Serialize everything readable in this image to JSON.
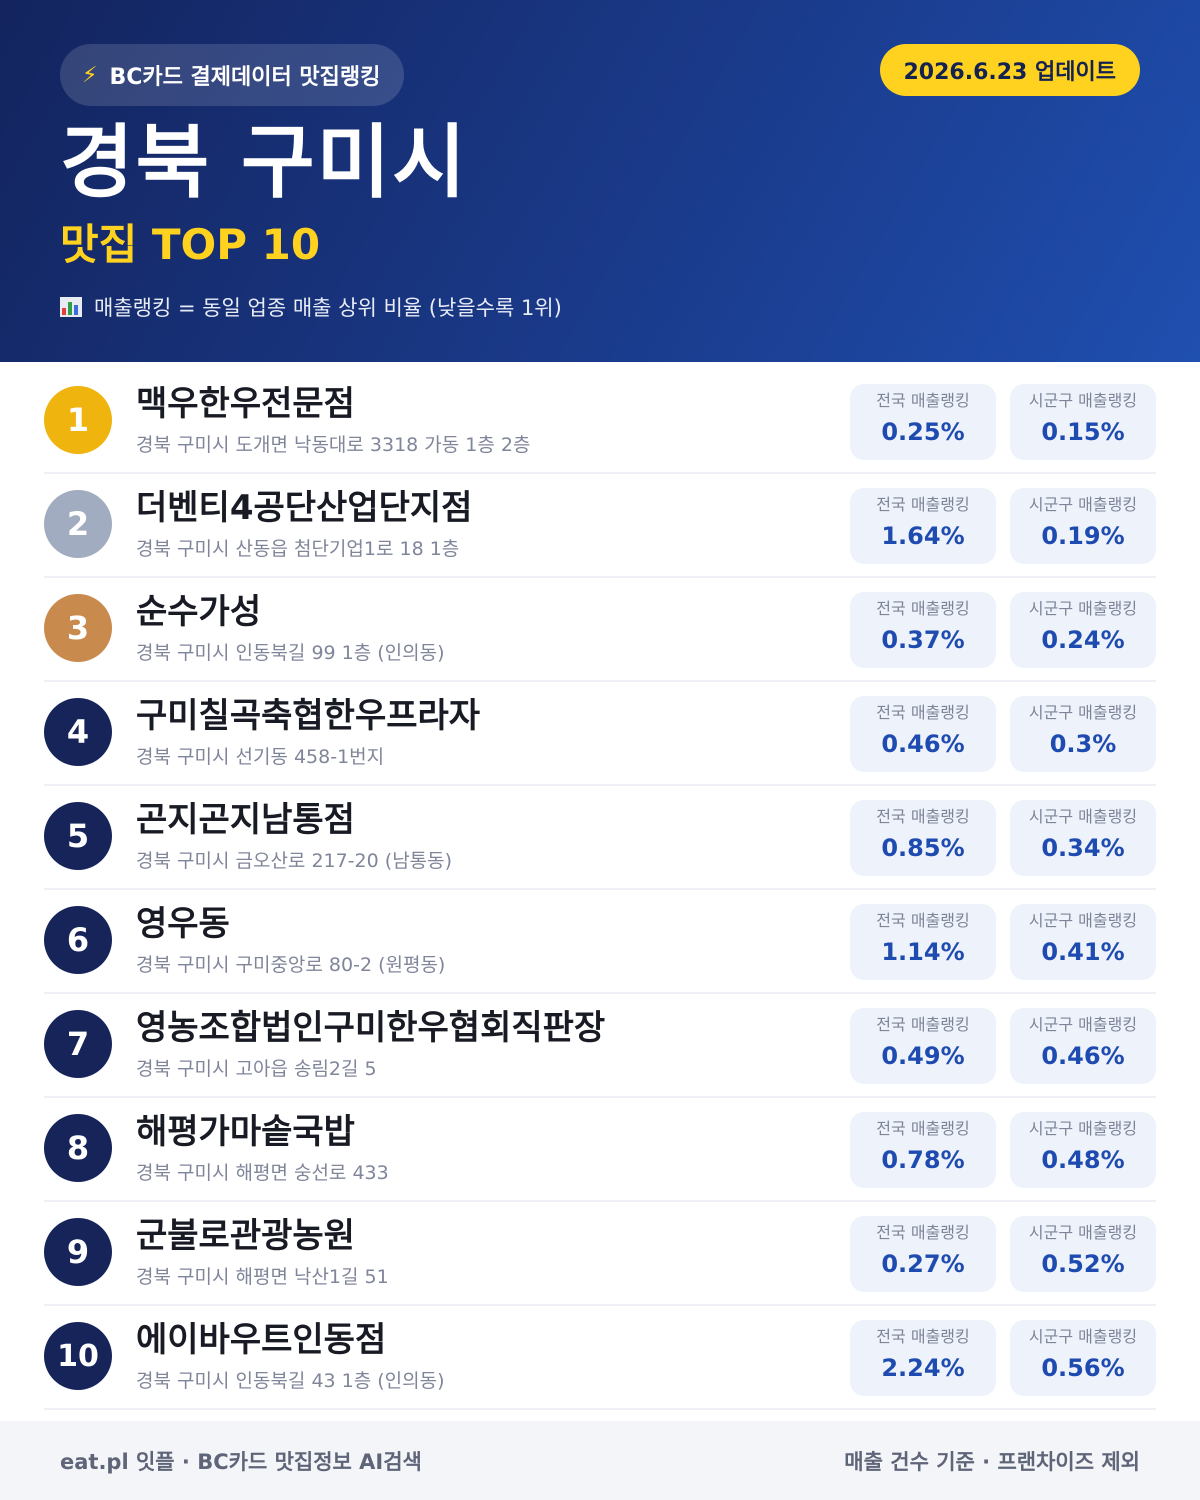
{
  "header": {
    "source_label": "BC카드 결제데이터 맛집랭킹",
    "update_label": "2026.6.23 업데이트",
    "title": "경북 구미시",
    "subtitle": "맛집 TOP 10",
    "rank_note": "매출랭킹 = 동일 업종 매출 상위 비율 (낮을수록 1위)"
  },
  "stat_labels": {
    "national": "전국 매출랭킹",
    "local": "시군구 매출랭킹"
  },
  "restaurants": [
    {
      "rank": "1",
      "name": "맥우한우전문점",
      "address": "경북 구미시 도개면 낙동대로 3318 가동 1층 2층",
      "national": "0.25%",
      "local": "0.15%"
    },
    {
      "rank": "2",
      "name": "더벤티4공단산업단지점",
      "address": "경북 구미시 산동읍 첨단기업1로 18 1층",
      "national": "1.64%",
      "local": "0.19%"
    },
    {
      "rank": "3",
      "name": "순수가성",
      "address": "경북 구미시 인동북길 99 1층 (인의동)",
      "national": "0.37%",
      "local": "0.24%"
    },
    {
      "rank": "4",
      "name": "구미칠곡축협한우프라자",
      "address": "경북 구미시 선기동 458-1번지",
      "national": "0.46%",
      "local": "0.3%"
    },
    {
      "rank": "5",
      "name": "곤지곤지남통점",
      "address": "경북 구미시 금오산로 217-20 (남통동)",
      "national": "0.85%",
      "local": "0.34%"
    },
    {
      "rank": "6",
      "name": "영우동",
      "address": "경북 구미시 구미중앙로 80-2 (원평동)",
      "national": "1.14%",
      "local": "0.41%"
    },
    {
      "rank": "7",
      "name": "영농조합법인구미한우협회직판장",
      "address": "경북 구미시 고아읍 송림2길 5",
      "national": "0.49%",
      "local": "0.46%"
    },
    {
      "rank": "8",
      "name": "해평가마솥국밥",
      "address": "경북 구미시 해평면 숭선로 433",
      "national": "0.78%",
      "local": "0.48%"
    },
    {
      "rank": "9",
      "name": "군불로관광농원",
      "address": "경북 구미시 해평면 낙산1길 51",
      "national": "0.27%",
      "local": "0.52%"
    },
    {
      "rank": "10",
      "name": "에이바우트인동점",
      "address": "경북 구미시 인동북길 43 1층 (인의동)",
      "national": "2.24%",
      "local": "0.56%"
    }
  ],
  "footer": {
    "left": "eat.pl 잇플 · BC카드 맛집정보 AI검색",
    "right": "매출 건수 기준 · 프랜차이즈 제외"
  },
  "colors": {
    "header_gradient_start": "#13245e",
    "header_gradient_end": "#1f4fb0",
    "accent_yellow": "#ffd21f",
    "rank_gold": "#f0b40f",
    "rank_silver": "#a2acc0",
    "rank_bronze": "#c98a4e",
    "rank_navy": "#17245a",
    "stat_value": "#1e4bb0"
  },
  "icons": [
    "lightning-bolt-icon",
    "bar-chart-icon"
  ]
}
